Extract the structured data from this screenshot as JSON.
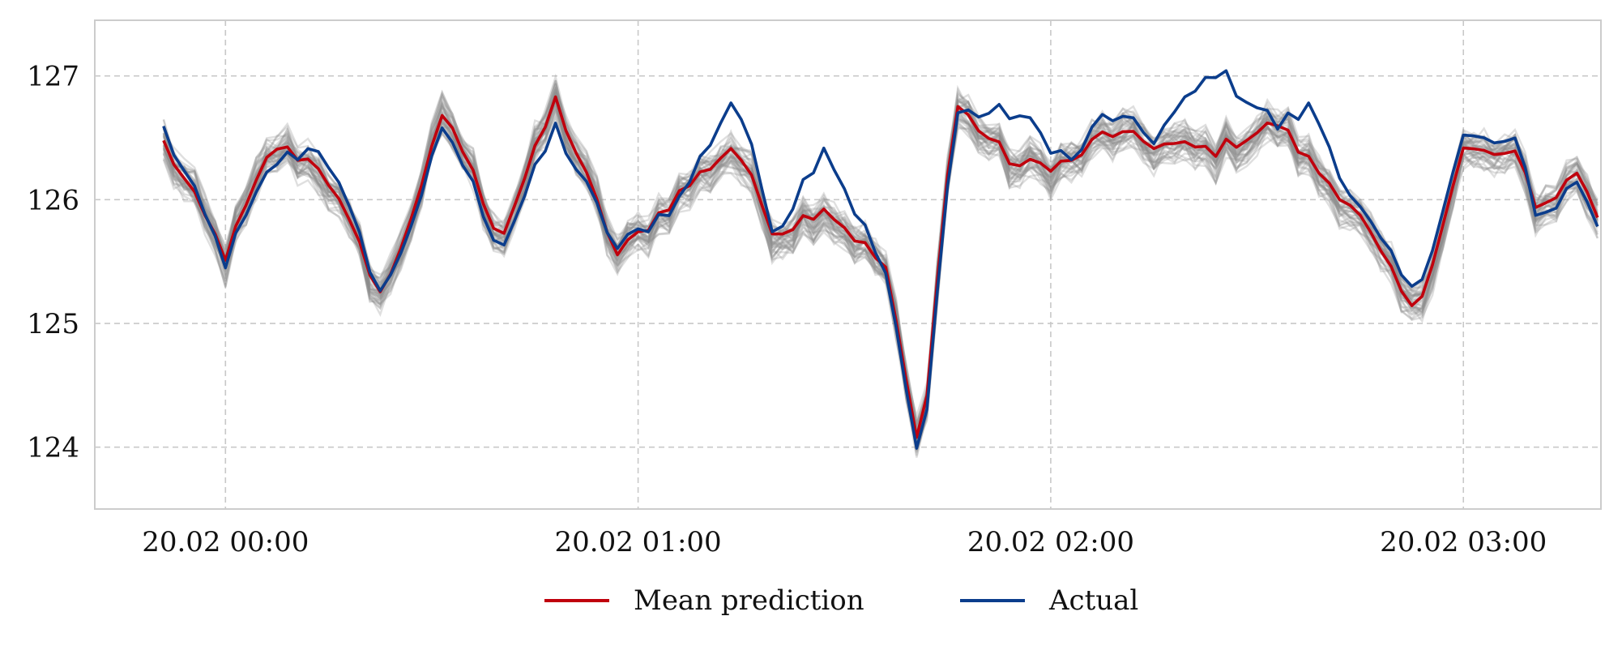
{
  "chart_data": {
    "type": "line",
    "title": "",
    "xlabel": "",
    "ylabel": "",
    "x_tick_labels": [
      "20.02 00:00",
      "20.02 01:00",
      "20.02 02:00",
      "20.02 03:00"
    ],
    "x_tick_minutes": [
      0,
      60,
      120,
      180
    ],
    "xlim_minutes": [
      -19,
      200
    ],
    "y_ticks": [
      124,
      125,
      126,
      127
    ],
    "ylim": [
      123.5,
      127.45
    ],
    "grid": true,
    "legend_position": "bottom-center",
    "legend": [
      {
        "label": "Mean prediction",
        "color": "#c0000d"
      },
      {
        "label": "Actual",
        "color": "#0b3d8c"
      }
    ],
    "ensemble_color": "#8c8c8c",
    "ensemble_samples": 40,
    "x_minutes": [
      -9,
      0,
      7,
      14,
      23,
      32,
      40,
      48,
      57,
      66,
      74,
      80,
      87,
      96,
      101,
      106,
      115,
      123,
      128,
      135,
      144,
      153,
      158,
      164,
      173,
      180,
      188,
      191,
      197,
      200
    ],
    "series": [
      {
        "name": "Mean prediction",
        "color": "#c0000d",
        "values": [
          126.46,
          125.55,
          126.44,
          126.27,
          125.2,
          126.72,
          125.68,
          126.8,
          125.55,
          126.05,
          126.45,
          125.72,
          125.95,
          125.45,
          123.9,
          126.78,
          126.27,
          126.3,
          126.55,
          126.45,
          126.4,
          126.62,
          126.28,
          125.95,
          125.05,
          126.4,
          126.34,
          125.91,
          126.25,
          125.75
        ]
      },
      {
        "name": "Actual",
        "color": "#0b3d8c",
        "values": [
          126.57,
          125.5,
          126.3,
          126.44,
          125.2,
          126.6,
          125.6,
          126.58,
          125.6,
          126.0,
          126.85,
          125.72,
          126.45,
          125.4,
          123.8,
          126.7,
          126.7,
          126.3,
          126.7,
          126.5,
          127.05,
          126.6,
          126.75,
          126.0,
          125.2,
          126.5,
          126.43,
          125.83,
          126.18,
          125.67
        ]
      }
    ]
  }
}
